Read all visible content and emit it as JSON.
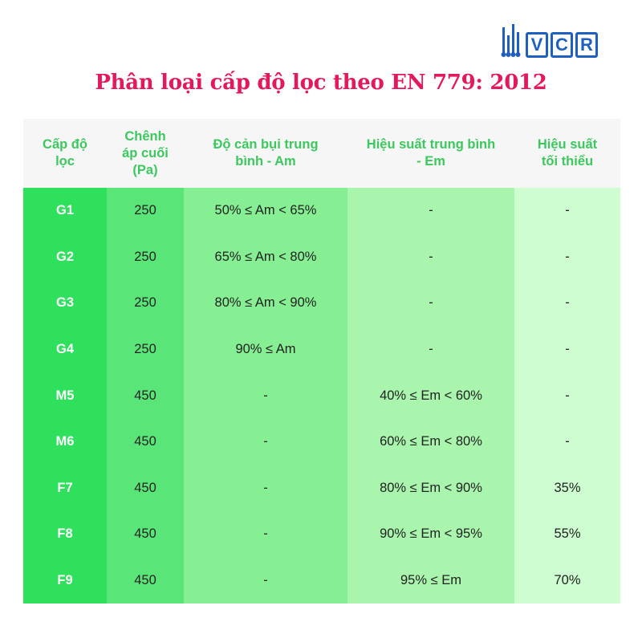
{
  "logo": {
    "letters": [
      "V",
      "C",
      "R"
    ],
    "brand_color": "#1f5fbf"
  },
  "title": "Phân loại cấp độ lọc theo EN 779: 2012",
  "colors": {
    "title": "#e4195c",
    "header_text": "#3cc85e",
    "header_bg": "#f6f6f6",
    "col1": "#2fe05c",
    "col2": "#5ae579",
    "col3": "#86ef93",
    "col4": "#a9f5ad",
    "col5": "#cdfdd0"
  },
  "table": {
    "headers": [
      [
        "Cấp độ",
        "lọc"
      ],
      [
        "Chênh",
        "áp cuối",
        "(Pa)"
      ],
      [
        "Độ cản bụi trung",
        "bình - Am"
      ],
      [
        "Hiệu suất trung bình",
        "- Em"
      ],
      [
        "Hiệu suất",
        "tối thiểu"
      ]
    ],
    "rows": [
      [
        "G1",
        "250",
        "50% ≤ Am < 65%",
        "-",
        "-"
      ],
      [
        "G2",
        "250",
        "65% ≤ Am < 80%",
        "-",
        "-"
      ],
      [
        "G3",
        "250",
        "80% ≤ Am < 90%",
        "-",
        "-"
      ],
      [
        "G4",
        "250",
        "90% ≤ Am",
        "-",
        "-"
      ],
      [
        "M5",
        "450",
        "-",
        "40% ≤ Em < 60%",
        "-"
      ],
      [
        "M6",
        "450",
        "-",
        "60% ≤ Em < 80%",
        "-"
      ],
      [
        "F7",
        "450",
        "-",
        "80% ≤ Em < 90%",
        "35%"
      ],
      [
        "F8",
        "450",
        "-",
        "90% ≤ Em < 95%",
        "55%"
      ],
      [
        "F9",
        "450",
        "-",
        "95% ≤ Em",
        "70%"
      ]
    ]
  }
}
